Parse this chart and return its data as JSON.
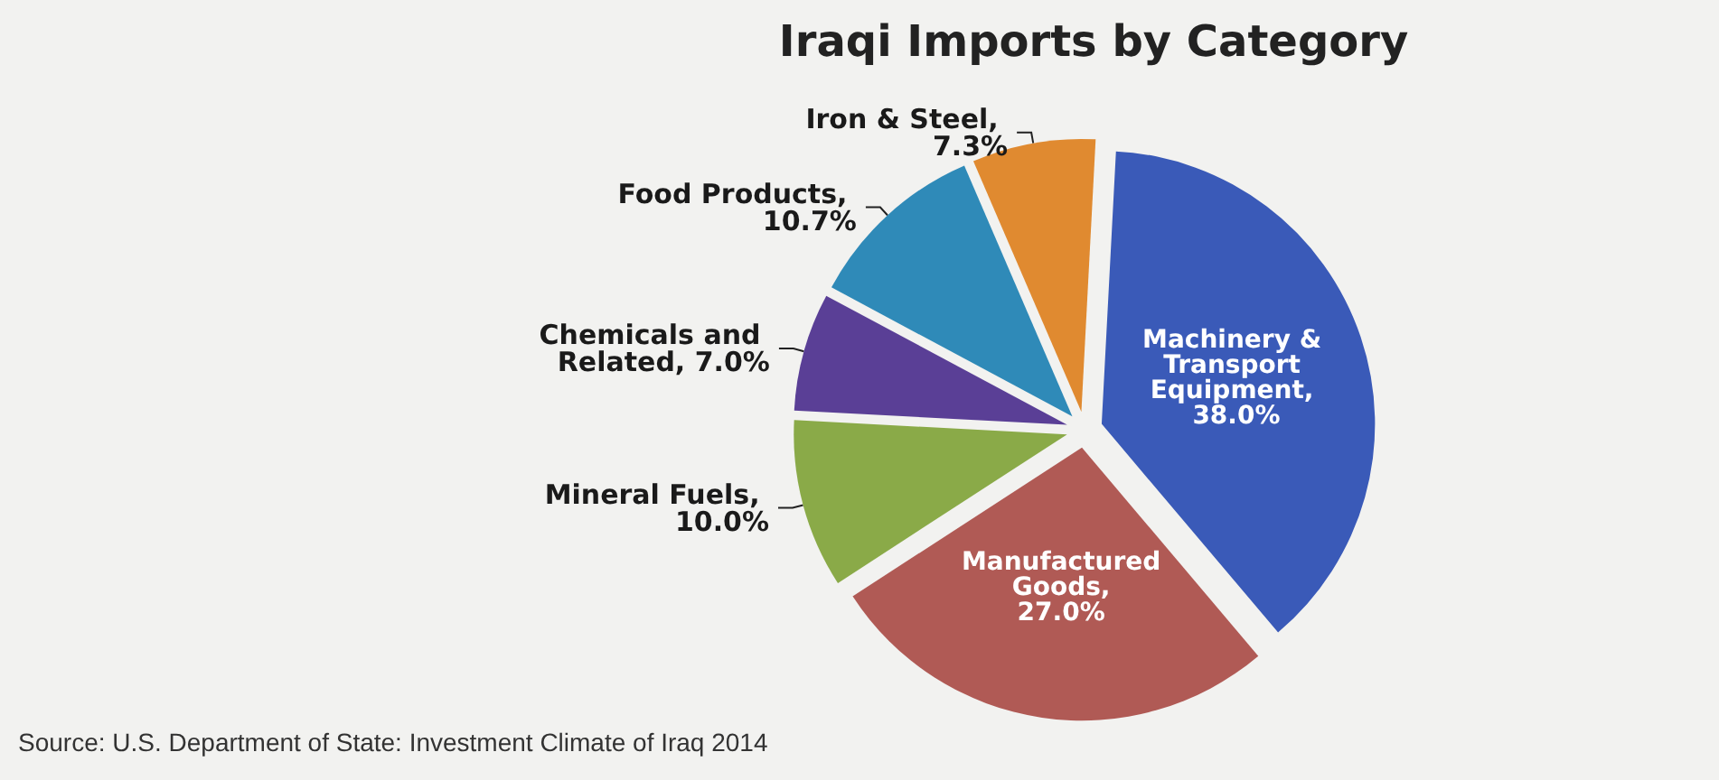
{
  "chart_data": {
    "type": "pie",
    "title": "Iraqi Imports by Category",
    "categories": [
      "Machinery & Transport Equipment",
      "Manufactured Goods",
      "Mineral Fuels",
      "Chemicals and Related",
      "Food Products",
      "Iron & Steel"
    ],
    "values": [
      38.0,
      27.0,
      10.0,
      7.0,
      10.7,
      7.3
    ],
    "value_labels": [
      ", 38.0%",
      ", 27.0%",
      ", 10.0%",
      ", 7.0%",
      ", 10.7%",
      ", 7.3%"
    ],
    "colors": [
      "#3a5ab8",
      "#b05a55",
      "#8aaa48",
      "#5a3f96",
      "#2f8ab8",
      "#e08a30"
    ],
    "legend": false,
    "annotations": [
      "Source: U.S. Department of State: Investment Climate of Iraq 2014"
    ]
  }
}
